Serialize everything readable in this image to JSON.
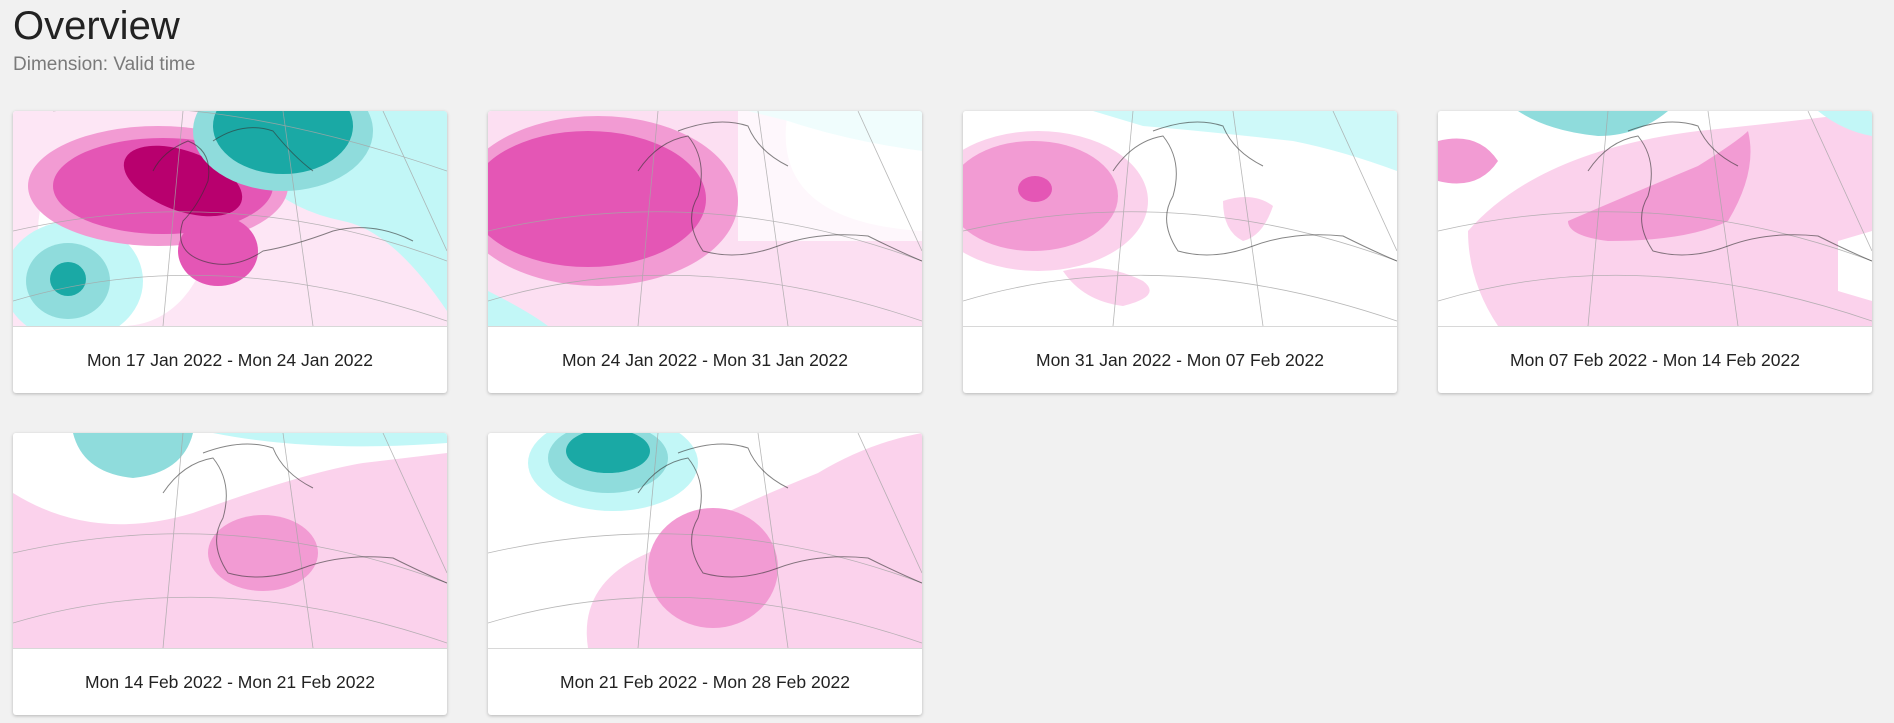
{
  "header": {
    "title": "Overview",
    "subtitle": "Dimension: Valid time"
  },
  "colors": {
    "positive_light": "#fbd2ec",
    "positive_mid": "#f29bd3",
    "positive_strong": "#e456b5",
    "positive_max": "#b8006e",
    "negative_light": "#c2f7f7",
    "negative_mid": "#8fdcdc",
    "negative_strong": "#1aa9a5",
    "background": "#f1f1f1"
  },
  "cards": [
    {
      "caption": "Mon 17 Jan 2022 - Mon 24 Jan 2022",
      "map": "anomaly-map-week-1"
    },
    {
      "caption": "Mon 24 Jan 2022 - Mon 31 Jan 2022",
      "map": "anomaly-map-week-2"
    },
    {
      "caption": "Mon 31 Jan 2022 - Mon 07 Feb 2022",
      "map": "anomaly-map-week-3"
    },
    {
      "caption": "Mon 07 Feb 2022 - Mon 14 Feb 2022",
      "map": "anomaly-map-week-4"
    },
    {
      "caption": "Mon 14 Feb 2022 - Mon 21 Feb 2022",
      "map": "anomaly-map-week-5"
    },
    {
      "caption": "Mon 21 Feb 2022 - Mon 28 Feb 2022",
      "map": "anomaly-map-week-6"
    }
  ]
}
